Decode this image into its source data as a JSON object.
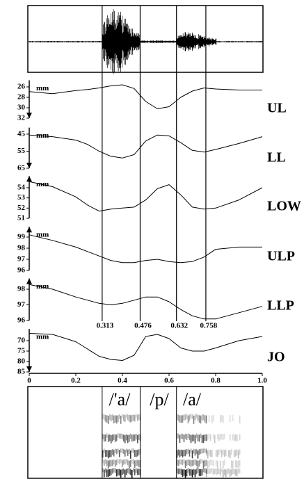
{
  "chart_data": [
    {
      "type": "line",
      "label": "UL",
      "unit": "mm",
      "y_inverted": true,
      "ylim": [
        25,
        32
      ],
      "yticks": [
        26,
        28,
        30,
        32
      ],
      "x": [
        0,
        0.1,
        0.2,
        0.25,
        0.3,
        0.35,
        0.4,
        0.45,
        0.5,
        0.55,
        0.6,
        0.65,
        0.7,
        0.75,
        0.8,
        0.9,
        1.0
      ],
      "values": [
        26.9,
        27.3,
        26.7,
        26.5,
        26.2,
        25.8,
        25.6,
        26.3,
        28.8,
        30.2,
        29.8,
        28.0,
        26.8,
        26.2,
        26.4,
        26.6,
        26.6
      ]
    },
    {
      "type": "line",
      "label": "LL",
      "unit": "mm",
      "y_inverted": true,
      "ylim": [
        42,
        65
      ],
      "yticks": [
        45,
        55,
        65
      ],
      "x": [
        0,
        0.1,
        0.2,
        0.25,
        0.3,
        0.35,
        0.4,
        0.45,
        0.5,
        0.55,
        0.6,
        0.65,
        0.7,
        0.75,
        0.8,
        0.9,
        1.0
      ],
      "values": [
        45.5,
        46.5,
        48.5,
        51,
        55,
        58,
        59,
        57,
        49,
        45.5,
        46,
        50,
        54.5,
        55.5,
        54,
        50.5,
        46.5
      ]
    },
    {
      "type": "line",
      "label": "LOW",
      "unit": "mm",
      "y_inverted": false,
      "ylim": [
        51,
        55
      ],
      "yticks": [
        51,
        52,
        53,
        54
      ],
      "x": [
        0,
        0.1,
        0.2,
        0.25,
        0.3,
        0.35,
        0.4,
        0.45,
        0.5,
        0.55,
        0.6,
        0.65,
        0.7,
        0.75,
        0.8,
        0.9,
        1.0
      ],
      "values": [
        54.6,
        54.1,
        53.1,
        52.3,
        51.7,
        51.9,
        52.0,
        52.1,
        52.8,
        53.9,
        54.3,
        53.3,
        52.1,
        51.9,
        52.0,
        52.8,
        54.0
      ]
    },
    {
      "type": "line",
      "label": "ULP",
      "unit": "mm",
      "y_inverted": false,
      "ylim": [
        96,
        99.8
      ],
      "yticks": [
        96,
        97,
        98,
        99
      ],
      "x": [
        0,
        0.1,
        0.2,
        0.25,
        0.3,
        0.35,
        0.4,
        0.45,
        0.5,
        0.55,
        0.6,
        0.65,
        0.7,
        0.75,
        0.8,
        0.9,
        1.0
      ],
      "values": [
        99.2,
        98.7,
        98.1,
        97.7,
        97.3,
        96.9,
        96.7,
        96.7,
        96.9,
        97.0,
        96.8,
        96.7,
        96.8,
        97.2,
        97.9,
        98.1,
        98.1
      ]
    },
    {
      "type": "line",
      "label": "LLP",
      "unit": "mm",
      "y_inverted": false,
      "ylim": [
        96,
        98.6
      ],
      "yticks": [
        96,
        97,
        98
      ],
      "x": [
        0,
        0.1,
        0.2,
        0.25,
        0.3,
        0.35,
        0.4,
        0.45,
        0.5,
        0.55,
        0.6,
        0.65,
        0.7,
        0.75,
        0.8,
        0.9,
        1.0
      ],
      "values": [
        98.3,
        98.0,
        97.5,
        97.3,
        97.1,
        97.0,
        97.1,
        97.3,
        97.5,
        97.5,
        97.2,
        96.7,
        96.3,
        96.1,
        96.1,
        96.5,
        96.9
      ]
    },
    {
      "type": "line",
      "label": "JO",
      "unit": "mm",
      "y_inverted": true,
      "ylim": [
        65,
        85
      ],
      "yticks": [
        70,
        75,
        80,
        85
      ],
      "x": [
        0,
        0.1,
        0.2,
        0.25,
        0.3,
        0.35,
        0.4,
        0.45,
        0.5,
        0.55,
        0.6,
        0.65,
        0.7,
        0.75,
        0.8,
        0.9,
        1.0
      ],
      "values": [
        66.5,
        67,
        70.5,
        74,
        77.5,
        79,
        79.5,
        77,
        68,
        67,
        69,
        73.5,
        75,
        75,
        73.5,
        70,
        68
      ],
      "xlim": [
        0,
        1
      ],
      "xticks": [
        0,
        0.2,
        0.4,
        0.6,
        0.8,
        {
          "value": 1,
          "label": "1.0"
        }
      ]
    }
  ],
  "boundaries": {
    "values": [
      0.313,
      0.476,
      0.632,
      0.758
    ]
  },
  "phonemes": [
    "/'a/",
    "/p/",
    "/a/"
  ]
}
